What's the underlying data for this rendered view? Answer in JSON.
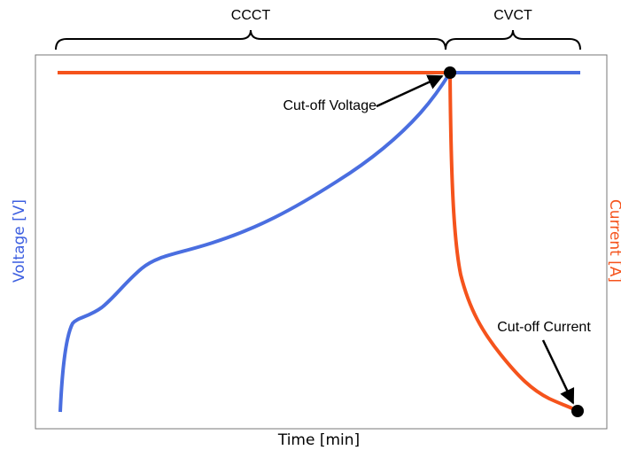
{
  "phases": [
    "CCCT",
    "CVCT"
  ],
  "annotations": {
    "voltage_cutoff": "Cut-off Voltage",
    "current_cutoff": "Cut-off Current"
  },
  "axes": {
    "left": "Voltage [V]",
    "right": "Current [A]",
    "bottom": "Time [min]"
  }
}
